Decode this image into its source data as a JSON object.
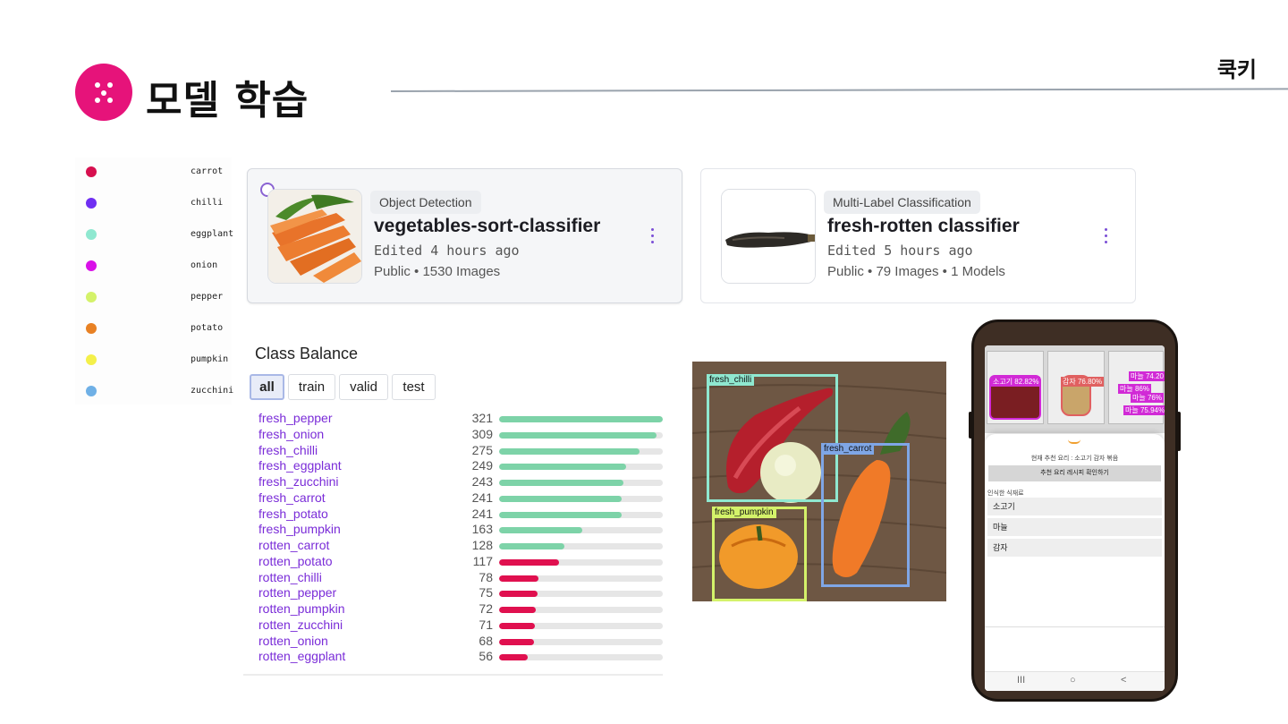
{
  "header": {
    "title": "모델 학습",
    "brand": "쿡키"
  },
  "legend": [
    {
      "label": "carrot",
      "color": "#d7104f"
    },
    {
      "label": "chilli",
      "color": "#6f2ff2"
    },
    {
      "label": "eggplant",
      "color": "#8fe8d0"
    },
    {
      "label": "onion",
      "color": "#d911e8"
    },
    {
      "label": "pepper",
      "color": "#d4f26a"
    },
    {
      "label": "potato",
      "color": "#e88124"
    },
    {
      "label": "pumpkin",
      "color": "#f4f04a"
    },
    {
      "label": "zucchini",
      "color": "#6fb0e6"
    }
  ],
  "projects": [
    {
      "tag": "Object Detection",
      "title": "vegetables-sort-classifier",
      "edited": "Edited 4 hours ago",
      "meta": "Public • 1530 Images",
      "selected": true
    },
    {
      "tag": "Multi-Label Classification",
      "title": "fresh-rotten classifier",
      "edited": "Edited 5 hours ago",
      "meta": "Public • 79 Images • 1 Models",
      "selected": false
    }
  ],
  "class_balance": {
    "title": "Class Balance",
    "tabs": [
      "all",
      "train",
      "valid",
      "test"
    ],
    "active_tab": "all",
    "max": 321,
    "fresh_color": "#7dd3a8",
    "rotten_color": "#e0104f",
    "rows": [
      {
        "name": "fresh_pepper",
        "count": 321,
        "kind": "fresh"
      },
      {
        "name": "fresh_onion",
        "count": 309,
        "kind": "fresh"
      },
      {
        "name": "fresh_chilli",
        "count": 275,
        "kind": "fresh"
      },
      {
        "name": "fresh_eggplant",
        "count": 249,
        "kind": "fresh"
      },
      {
        "name": "fresh_zucchini",
        "count": 243,
        "kind": "fresh"
      },
      {
        "name": "fresh_carrot",
        "count": 241,
        "kind": "fresh"
      },
      {
        "name": "fresh_potato",
        "count": 241,
        "kind": "fresh"
      },
      {
        "name": "fresh_pumpkin",
        "count": 163,
        "kind": "fresh"
      },
      {
        "name": "rotten_carrot",
        "count": 128,
        "kind": "fresh"
      },
      {
        "name": "rotten_potato",
        "count": 117,
        "kind": "rotten"
      },
      {
        "name": "rotten_chilli",
        "count": 78,
        "kind": "rotten"
      },
      {
        "name": "rotten_pepper",
        "count": 75,
        "kind": "rotten"
      },
      {
        "name": "rotten_pumpkin",
        "count": 72,
        "kind": "rotten"
      },
      {
        "name": "rotten_zucchini",
        "count": 71,
        "kind": "rotten"
      },
      {
        "name": "rotten_onion",
        "count": 68,
        "kind": "rotten"
      },
      {
        "name": "rotten_eggplant",
        "count": 56,
        "kind": "rotten"
      }
    ]
  },
  "detection": {
    "labels": {
      "chilli": "fresh_chilli",
      "carrot": "fresh_carrot",
      "pumpkin": "fresh_pumpkin"
    },
    "colors": {
      "chilli": "#8fe8d0",
      "carrot": "#7fa6e6",
      "pumpkin": "#d4f26a"
    }
  },
  "phone": {
    "detections": [
      "소고기 82.82%",
      "감자 76.80%",
      "마늘 74.20",
      "마늘 86%",
      "마늘 76%",
      "마늘 75.94%"
    ],
    "recommendation": "현재 추천 요리 : 소고기 감자 볶음",
    "button": "추천 요리 레시피 확인하기",
    "ingredients_label": "인식한 식재료",
    "ingredients": [
      "소고기",
      "마늘",
      "감자"
    ],
    "nav": [
      "III",
      "○",
      "<"
    ]
  }
}
